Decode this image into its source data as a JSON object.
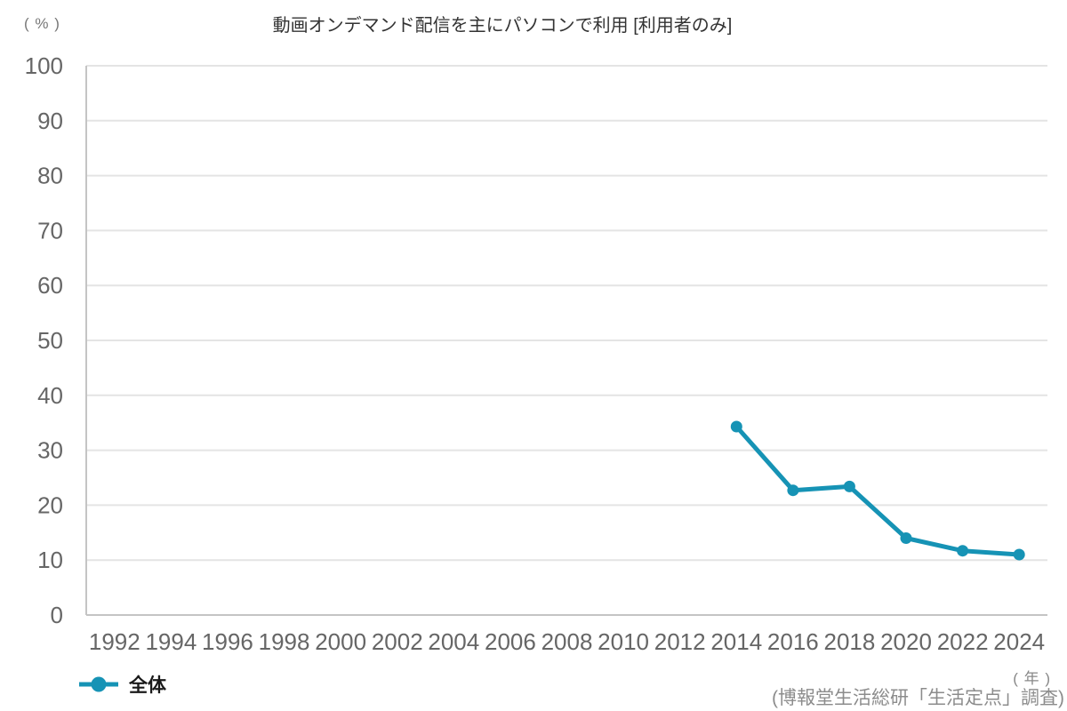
{
  "chart_data": {
    "type": "line",
    "title": "動画オンデマンド配信を主にパソコンで利用 [利用者のみ]",
    "y_unit": "( % )",
    "x_unit": "( 年 )",
    "source": "(博報堂生活総研「生活定点」調査)",
    "categories": [
      "1992",
      "1994",
      "1996",
      "1998",
      "2000",
      "2002",
      "2004",
      "2006",
      "2008",
      "2010",
      "2012",
      "2014",
      "2016",
      "2018",
      "2020",
      "2022",
      "2024"
    ],
    "series": [
      {
        "name": "全体",
        "color": "#1693b5",
        "values": [
          null,
          null,
          null,
          null,
          null,
          null,
          null,
          null,
          null,
          null,
          null,
          34.3,
          22.7,
          23.4,
          14.0,
          11.7,
          11.0
        ]
      }
    ],
    "ylim": [
      0,
      100
    ],
    "ytick_step": 10,
    "grid": "horizontal",
    "legend_position": "bottom-left",
    "colors": {
      "accent": "#1693b5",
      "grid": "#e4e4e4",
      "axis": "#c4c4c4",
      "tick_text": "#666666",
      "title_text": "#333333",
      "muted_text": "#8c8c8c"
    }
  }
}
